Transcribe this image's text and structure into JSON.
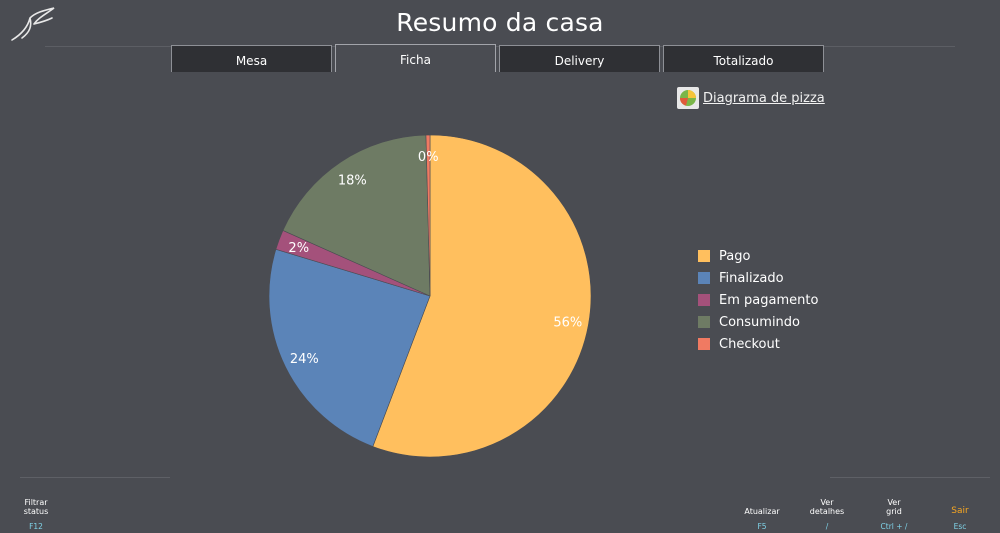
{
  "header": {
    "title": "Resumo da casa"
  },
  "tabs": [
    {
      "label": "Mesa",
      "active": false
    },
    {
      "label": "Ficha",
      "active": true
    },
    {
      "label": "Delivery",
      "active": false
    },
    {
      "label": "Totalizado",
      "active": false
    }
  ],
  "chart_link": {
    "label": "Diagrama de pizza",
    "icon": "pie-chart-icon"
  },
  "chart_data": {
    "type": "pie",
    "categories": [
      "Pago",
      "Finalizado",
      "Em pagamento",
      "Consumindo",
      "Checkout"
    ],
    "values": [
      56,
      24,
      2,
      18,
      0.4
    ],
    "labels": [
      "56%",
      "24%",
      "2%",
      "18%",
      "0%"
    ],
    "colors": [
      "#ffbf5e",
      "#5b84b8",
      "#a4517b",
      "#6e7b64",
      "#f07a62"
    ],
    "legend_position": "right"
  },
  "function_keys": [
    {
      "label": "Filtrar\nstatus",
      "key": "F12"
    },
    {
      "label": "Atualizar",
      "key": "F5"
    },
    {
      "label": "Ver\ndetalhes",
      "key": "/"
    },
    {
      "label": "Ver\ngrid",
      "key": "Ctrl + /"
    },
    {
      "label": "Sair",
      "key": "Esc"
    }
  ]
}
